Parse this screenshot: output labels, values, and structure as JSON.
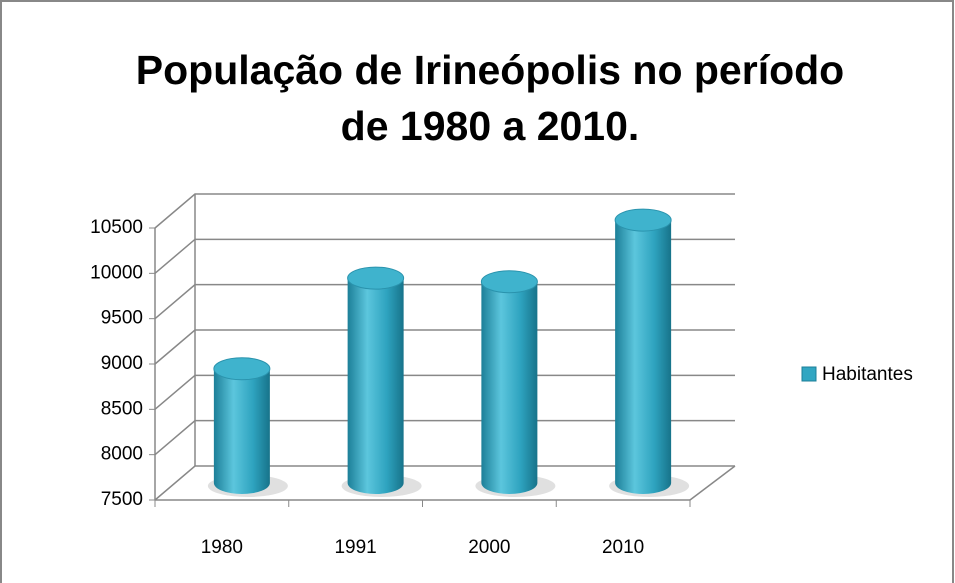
{
  "chart_data": {
    "type": "bar3d",
    "title": "População de Irineópolis no período de 1980 a 2010.",
    "categories": [
      "1980",
      "1991",
      "2000",
      "2010"
    ],
    "series": [
      {
        "name": "Habitantes",
        "color": "#31a6c2",
        "values": [
          8760,
          9760,
          9720,
          10400
        ]
      }
    ],
    "ylim": [
      7500,
      10500
    ],
    "yticks": [
      7500,
      8000,
      8500,
      9000,
      9500,
      10000,
      10500
    ],
    "grid": true,
    "legend": "right"
  }
}
